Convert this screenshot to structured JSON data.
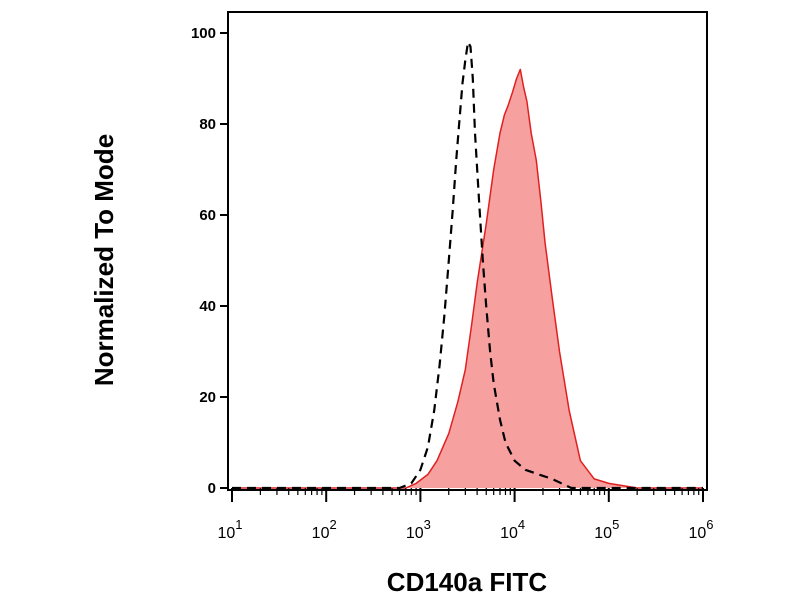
{
  "chart_data": {
    "type": "area",
    "xlabel": "CD140a FITC",
    "ylabel": "Normalized To Mode",
    "x_scale": "log",
    "xlim": [
      10,
      1000000
    ],
    "ylim": [
      0,
      105
    ],
    "y_ticks": [
      "0",
      "20",
      "40",
      "60",
      "80",
      "100"
    ],
    "x_ticks": [
      {
        "base": "10",
        "exp": "1"
      },
      {
        "base": "10",
        "exp": "2"
      },
      {
        "base": "10",
        "exp": "3"
      },
      {
        "base": "10",
        "exp": "4"
      },
      {
        "base": "10",
        "exp": "5"
      },
      {
        "base": "10",
        "exp": "6"
      }
    ],
    "grid": false,
    "legend": "none",
    "series": [
      {
        "style": "filled",
        "fill_color": "#f7a0a0",
        "line_color": "#e02020",
        "x": [
          10,
          100,
          700,
          900,
          1200,
          1500,
          2000,
          2500,
          3000,
          3500,
          4000,
          5000,
          6000,
          7000,
          7800,
          8500,
          9500,
          10500,
          11500,
          12500,
          13500,
          15000,
          17000,
          19000,
          21000,
          25000,
          30000,
          38000,
          50000,
          70000,
          100000,
          200000,
          500000,
          1000000
        ],
        "y": [
          0,
          0,
          0,
          1,
          3,
          6,
          12,
          19,
          26,
          36,
          45,
          58,
          70,
          78,
          82,
          84,
          87,
          90,
          92,
          88,
          85,
          78,
          72,
          63,
          54,
          42,
          30,
          17,
          6,
          2,
          1,
          0,
          0,
          0
        ]
      },
      {
        "style": "dashed",
        "line_color": "#000000",
        "x": [
          10,
          100,
          600,
          800,
          1000,
          1200,
          1400,
          1600,
          1800,
          2000,
          2200,
          2400,
          2600,
          2800,
          3000,
          3200,
          3400,
          3600,
          3800,
          4200,
          4600,
          5000,
          5500,
          6000,
          7000,
          8000,
          10000,
          13000,
          18000,
          25000,
          40000,
          100000,
          1000000
        ],
        "y": [
          0,
          0,
          0,
          1,
          4,
          9,
          17,
          27,
          38,
          50,
          61,
          72,
          81,
          89,
          94,
          98,
          97,
          90,
          78,
          63,
          50,
          40,
          30,
          23,
          15,
          10,
          6,
          4,
          3,
          2,
          0,
          0,
          0
        ]
      }
    ]
  }
}
